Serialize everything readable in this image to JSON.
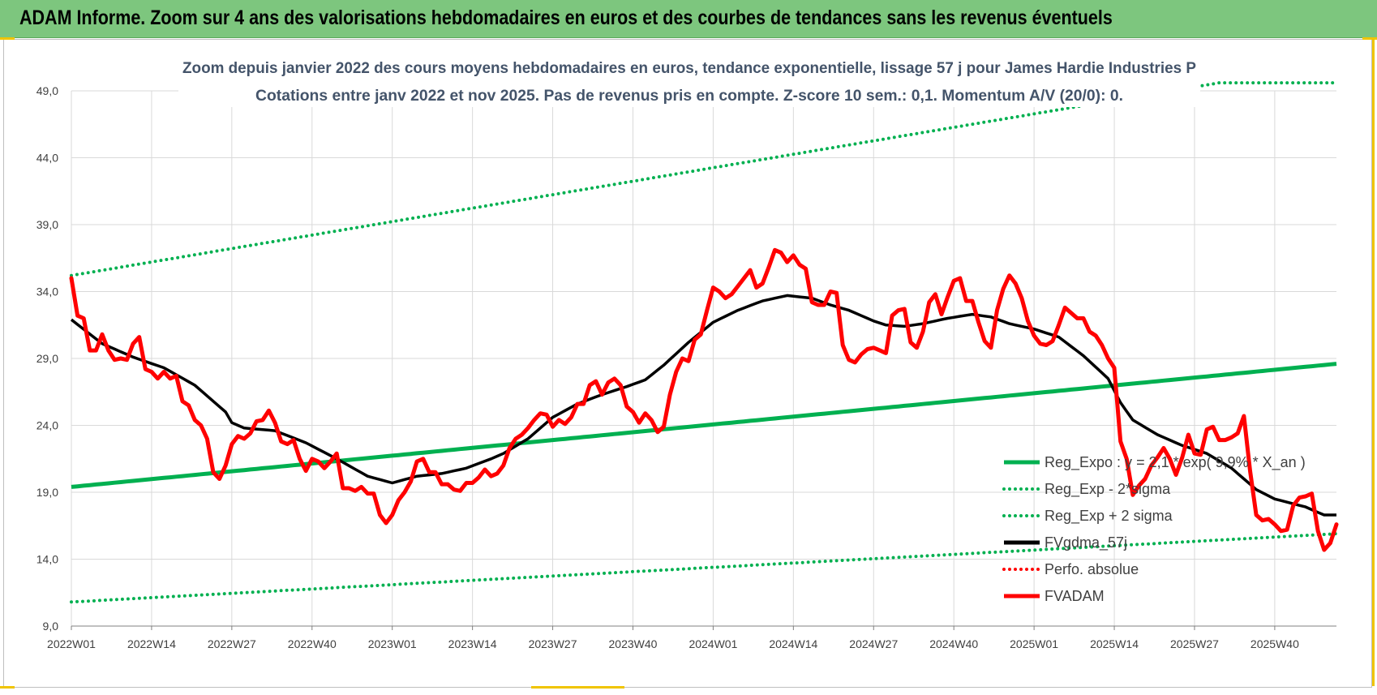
{
  "header": {
    "title": "ADAM Informe. Zoom sur 4 ans des valorisations hebdomadaires en euros et des courbes de tendances sans les revenus éventuels"
  },
  "chart_data": {
    "type": "line",
    "title_line1": "Zoom depuis janvier 2022 des cours moyens hebdomadaires en euros, tendance exponentielle, lissage 57 j pour James Hardie Industries P",
    "title_line2": "Cotations entre janv 2022 et nov 2025. Pas de revenus pris en compte. Z-score 10 sem.: 0,1. Momentum A/V (20/0): 0.",
    "ylim": [
      9,
      49
    ],
    "y_ticks": [
      "9,0",
      "14,0",
      "19,0",
      "24,0",
      "29,0",
      "34,0",
      "39,0",
      "44,0",
      "49,0"
    ],
    "x_tick_labels": [
      "2022W01",
      "2022W14",
      "2022W27",
      "2022W40",
      "2023W01",
      "2023W14",
      "2023W27",
      "2023W40",
      "2024W01",
      "2024W14",
      "2024W27",
      "2024W40",
      "2025W01",
      "2025W14",
      "2025W27",
      "2025W40"
    ],
    "x_tick_index": [
      0,
      13,
      26,
      39,
      52,
      65,
      78,
      91,
      104,
      117,
      130,
      143,
      156,
      169,
      182,
      195
    ],
    "n_weeks": 206,
    "grid": true,
    "legend_position": "bottom-right",
    "legend": [
      {
        "label": "Reg_Expo : y = 2,1 * exp( 9,9% *  X_an )",
        "style": "solid",
        "color": "#00b050"
      },
      {
        "label": "Reg_Exp - 2*sigma",
        "style": "dotted",
        "color": "#00b050"
      },
      {
        "label": "Reg_Exp + 2 sigma",
        "style": "dotted",
        "color": "#00b050"
      },
      {
        "label": "FVgdma_57j",
        "style": "solid",
        "color": "#000000"
      },
      {
        "label": "Perfo. absolue",
        "style": "dotted",
        "color": "#ff0000"
      },
      {
        "label": "FVADAM",
        "style": "solid",
        "color": "#ff0000"
      }
    ],
    "series": {
      "reg_expo": [
        [
          0,
          19.4
        ],
        [
          205,
          28.6
        ]
      ],
      "reg_minus": [
        [
          0,
          10.8
        ],
        [
          205,
          15.9
        ]
      ],
      "reg_plus": [
        [
          0,
          35.2
        ],
        [
          186,
          49.6
        ],
        [
          205,
          49.6
        ]
      ],
      "fvgdma": [
        [
          0,
          31.9
        ],
        [
          5,
          30.1
        ],
        [
          10,
          29.1
        ],
        [
          15,
          28.3
        ],
        [
          20,
          27.0
        ],
        [
          25,
          25.0
        ],
        [
          26,
          24.2
        ],
        [
          28,
          23.8
        ],
        [
          33,
          23.6
        ],
        [
          38,
          22.7
        ],
        [
          43,
          21.5
        ],
        [
          48,
          20.2
        ],
        [
          52,
          19.7
        ],
        [
          56,
          20.2
        ],
        [
          60,
          20.4
        ],
        [
          64,
          20.8
        ],
        [
          68,
          21.5
        ],
        [
          70,
          21.9
        ],
        [
          74,
          23.0
        ],
        [
          78,
          24.6
        ],
        [
          82,
          25.6
        ],
        [
          86,
          26.3
        ],
        [
          90,
          26.9
        ],
        [
          93,
          27.4
        ],
        [
          96,
          28.5
        ],
        [
          100,
          30.2
        ],
        [
          104,
          31.7
        ],
        [
          108,
          32.6
        ],
        [
          112,
          33.3
        ],
        [
          116,
          33.7
        ],
        [
          120,
          33.5
        ],
        [
          123,
          33.0
        ],
        [
          126,
          32.6
        ],
        [
          130,
          31.8
        ],
        [
          132,
          31.5
        ],
        [
          135,
          31.4
        ],
        [
          138,
          31.6
        ],
        [
          142,
          32.0
        ],
        [
          146,
          32.3
        ],
        [
          149,
          32.1
        ],
        [
          152,
          31.6
        ],
        [
          156,
          31.2
        ],
        [
          160,
          30.6
        ],
        [
          164,
          29.2
        ],
        [
          168,
          27.5
        ],
        [
          170,
          25.7
        ],
        [
          172,
          24.4
        ],
        [
          176,
          23.3
        ],
        [
          180,
          22.5
        ],
        [
          184,
          21.9
        ],
        [
          188,
          20.8
        ],
        [
          192,
          19.2
        ],
        [
          195,
          18.5
        ],
        [
          200,
          17.9
        ],
        [
          203,
          17.3
        ],
        [
          205,
          17.3
        ]
      ],
      "fvadam": [
        [
          0,
          35.0
        ],
        [
          1,
          32.2
        ],
        [
          2,
          32.0
        ],
        [
          3,
          29.6
        ],
        [
          4,
          29.6
        ],
        [
          5,
          30.8
        ],
        [
          6,
          29.6
        ],
        [
          7,
          28.9
        ],
        [
          8,
          29.0
        ],
        [
          9,
          28.9
        ],
        [
          10,
          30.1
        ],
        [
          11,
          30.6
        ],
        [
          12,
          28.2
        ],
        [
          13,
          28.0
        ],
        [
          14,
          27.5
        ],
        [
          15,
          28.0
        ],
        [
          16,
          27.5
        ],
        [
          17,
          27.7
        ],
        [
          18,
          25.8
        ],
        [
          19,
          25.5
        ],
        [
          20,
          24.4
        ],
        [
          21,
          24.0
        ],
        [
          22,
          23.0
        ],
        [
          23,
          20.5
        ],
        [
          24,
          20.0
        ],
        [
          25,
          21.0
        ],
        [
          26,
          22.6
        ],
        [
          27,
          23.2
        ],
        [
          28,
          23.0
        ],
        [
          29,
          23.4
        ],
        [
          30,
          24.3
        ],
        [
          31,
          24.4
        ],
        [
          32,
          25.1
        ],
        [
          33,
          24.2
        ],
        [
          34,
          22.8
        ],
        [
          35,
          22.6
        ],
        [
          36,
          22.9
        ],
        [
          37,
          21.5
        ],
        [
          38,
          20.6
        ],
        [
          39,
          21.5
        ],
        [
          40,
          21.3
        ],
        [
          41,
          20.8
        ],
        [
          42,
          21.3
        ],
        [
          43,
          21.9
        ],
        [
          44,
          19.3
        ],
        [
          45,
          19.3
        ],
        [
          46,
          19.1
        ],
        [
          47,
          19.4
        ],
        [
          48,
          18.9
        ],
        [
          49,
          18.9
        ],
        [
          50,
          17.3
        ],
        [
          51,
          16.7
        ],
        [
          52,
          17.3
        ],
        [
          53,
          18.4
        ],
        [
          54,
          19.0
        ],
        [
          55,
          19.8
        ],
        [
          56,
          21.3
        ],
        [
          57,
          21.5
        ],
        [
          58,
          20.5
        ],
        [
          59,
          20.5
        ],
        [
          60,
          19.6
        ],
        [
          61,
          19.6
        ],
        [
          62,
          19.2
        ],
        [
          63,
          19.1
        ],
        [
          64,
          19.7
        ],
        [
          65,
          19.7
        ],
        [
          66,
          20.1
        ],
        [
          67,
          20.7
        ],
        [
          68,
          20.2
        ],
        [
          69,
          20.4
        ],
        [
          70,
          21.0
        ],
        [
          71,
          22.3
        ],
        [
          72,
          23.0
        ],
        [
          73,
          23.3
        ],
        [
          74,
          23.8
        ],
        [
          75,
          24.4
        ],
        [
          76,
          24.9
        ],
        [
          77,
          24.8
        ],
        [
          78,
          23.9
        ],
        [
          79,
          24.4
        ],
        [
          80,
          24.1
        ],
        [
          81,
          24.6
        ],
        [
          82,
          25.6
        ],
        [
          83,
          25.6
        ],
        [
          84,
          27.0
        ],
        [
          85,
          27.3
        ],
        [
          86,
          26.3
        ],
        [
          87,
          27.2
        ],
        [
          88,
          27.5
        ],
        [
          89,
          27.0
        ],
        [
          90,
          25.4
        ],
        [
          91,
          25.0
        ],
        [
          92,
          24.2
        ],
        [
          93,
          24.9
        ],
        [
          94,
          24.4
        ],
        [
          95,
          23.5
        ],
        [
          96,
          23.9
        ],
        [
          97,
          26.3
        ],
        [
          98,
          28.0
        ],
        [
          99,
          29.0
        ],
        [
          100,
          28.8
        ],
        [
          101,
          30.4
        ],
        [
          102,
          30.8
        ],
        [
          103,
          32.6
        ],
        [
          104,
          34.3
        ],
        [
          105,
          34.0
        ],
        [
          106,
          33.5
        ],
        [
          107,
          33.8
        ],
        [
          108,
          34.4
        ],
        [
          109,
          35.0
        ],
        [
          110,
          35.6
        ],
        [
          111,
          34.3
        ],
        [
          112,
          34.6
        ],
        [
          113,
          35.8
        ],
        [
          114,
          37.1
        ],
        [
          115,
          36.9
        ],
        [
          116,
          36.2
        ],
        [
          117,
          36.7
        ],
        [
          118,
          36.0
        ],
        [
          119,
          35.7
        ],
        [
          120,
          33.2
        ],
        [
          121,
          33.0
        ],
        [
          122,
          33.0
        ],
        [
          123,
          34.0
        ],
        [
          124,
          33.9
        ],
        [
          125,
          30.0
        ],
        [
          126,
          28.9
        ],
        [
          127,
          28.7
        ],
        [
          128,
          29.3
        ],
        [
          129,
          29.7
        ],
        [
          130,
          29.8
        ],
        [
          131,
          29.6
        ],
        [
          132,
          29.4
        ],
        [
          133,
          32.2
        ],
        [
          134,
          32.6
        ],
        [
          135,
          32.7
        ],
        [
          136,
          30.2
        ],
        [
          137,
          29.8
        ],
        [
          138,
          31.0
        ],
        [
          139,
          33.2
        ],
        [
          140,
          33.8
        ],
        [
          141,
          32.3
        ],
        [
          142,
          33.6
        ],
        [
          143,
          34.8
        ],
        [
          144,
          35.0
        ],
        [
          145,
          33.3
        ],
        [
          146,
          33.3
        ],
        [
          147,
          31.7
        ],
        [
          148,
          30.3
        ],
        [
          149,
          29.8
        ],
        [
          150,
          32.6
        ],
        [
          151,
          34.2
        ],
        [
          152,
          35.2
        ],
        [
          153,
          34.6
        ],
        [
          154,
          33.5
        ],
        [
          155,
          31.8
        ],
        [
          156,
          30.7
        ],
        [
          157,
          30.1
        ],
        [
          158,
          30.0
        ],
        [
          159,
          30.3
        ],
        [
          160,
          31.5
        ],
        [
          161,
          32.8
        ],
        [
          162,
          32.4
        ],
        [
          163,
          32.0
        ],
        [
          164,
          32.0
        ],
        [
          165,
          31.0
        ],
        [
          166,
          30.7
        ],
        [
          167,
          30.0
        ],
        [
          168,
          29.0
        ],
        [
          169,
          28.3
        ],
        [
          170,
          22.8
        ],
        [
          171,
          21.5
        ],
        [
          172,
          18.8
        ],
        [
          173,
          19.5
        ],
        [
          174,
          20.0
        ],
        [
          175,
          21.0
        ],
        [
          176,
          21.6
        ],
        [
          177,
          22.3
        ],
        [
          178,
          21.5
        ],
        [
          179,
          20.3
        ],
        [
          180,
          21.6
        ],
        [
          181,
          23.3
        ],
        [
          182,
          21.9
        ],
        [
          183,
          21.8
        ],
        [
          184,
          23.7
        ],
        [
          185,
          23.9
        ],
        [
          186,
          22.9
        ],
        [
          187,
          22.9
        ],
        [
          188,
          23.1
        ],
        [
          189,
          23.4
        ],
        [
          190,
          24.7
        ],
        [
          191,
          20.6
        ],
        [
          192,
          17.3
        ],
        [
          193,
          16.9
        ],
        [
          194,
          17.0
        ],
        [
          195,
          16.6
        ],
        [
          196,
          16.1
        ],
        [
          197,
          16.2
        ],
        [
          198,
          18.0
        ],
        [
          199,
          18.6
        ],
        [
          200,
          18.7
        ],
        [
          201,
          18.9
        ],
        [
          202,
          16.1
        ],
        [
          203,
          14.7
        ],
        [
          204,
          15.2
        ],
        [
          205,
          16.6
        ]
      ]
    },
    "colors": {
      "green": "#00b050",
      "black": "#000000",
      "red": "#ff0000",
      "grid": "#d9d9d9",
      "header_bg": "#7dc67e"
    }
  }
}
